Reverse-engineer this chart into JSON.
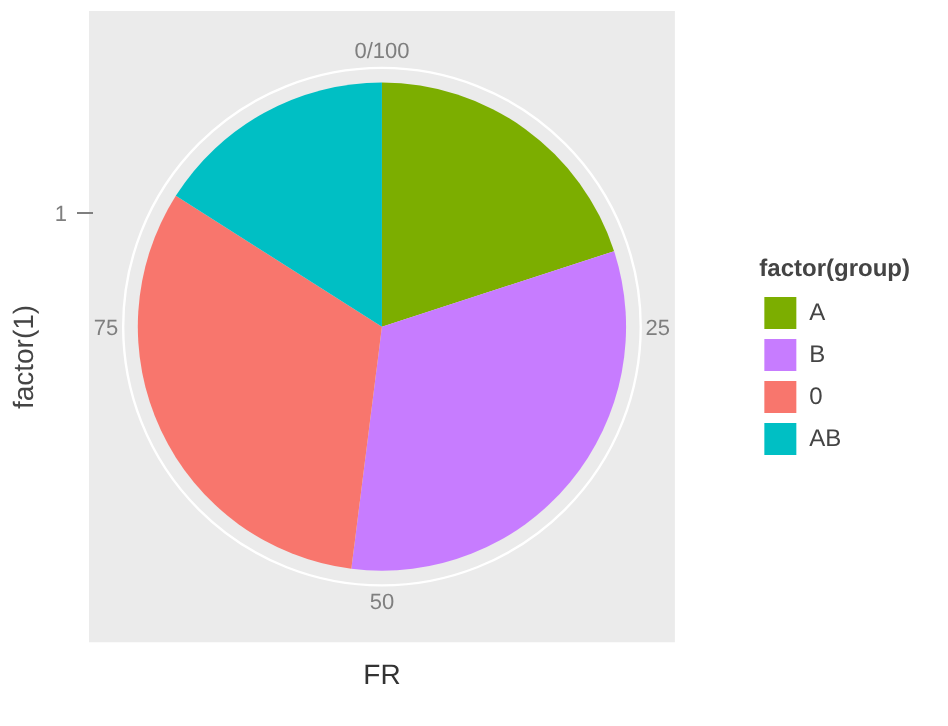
{
  "chart_data": {
    "type": "pie",
    "xlabel": "FR",
    "ylabel": "factor(1)",
    "legend_title": "factor(group)",
    "categories": [
      "A",
      "B",
      "0",
      "AB"
    ],
    "values": [
      20,
      32,
      32,
      16
    ],
    "colors": [
      "#7cae00",
      "#c77cff",
      "#f8766d",
      "#00bfc4"
    ],
    "annotations": [
      "0/100",
      "25",
      "50",
      "75",
      "1"
    ],
    "grid": true,
    "legend": "right"
  }
}
